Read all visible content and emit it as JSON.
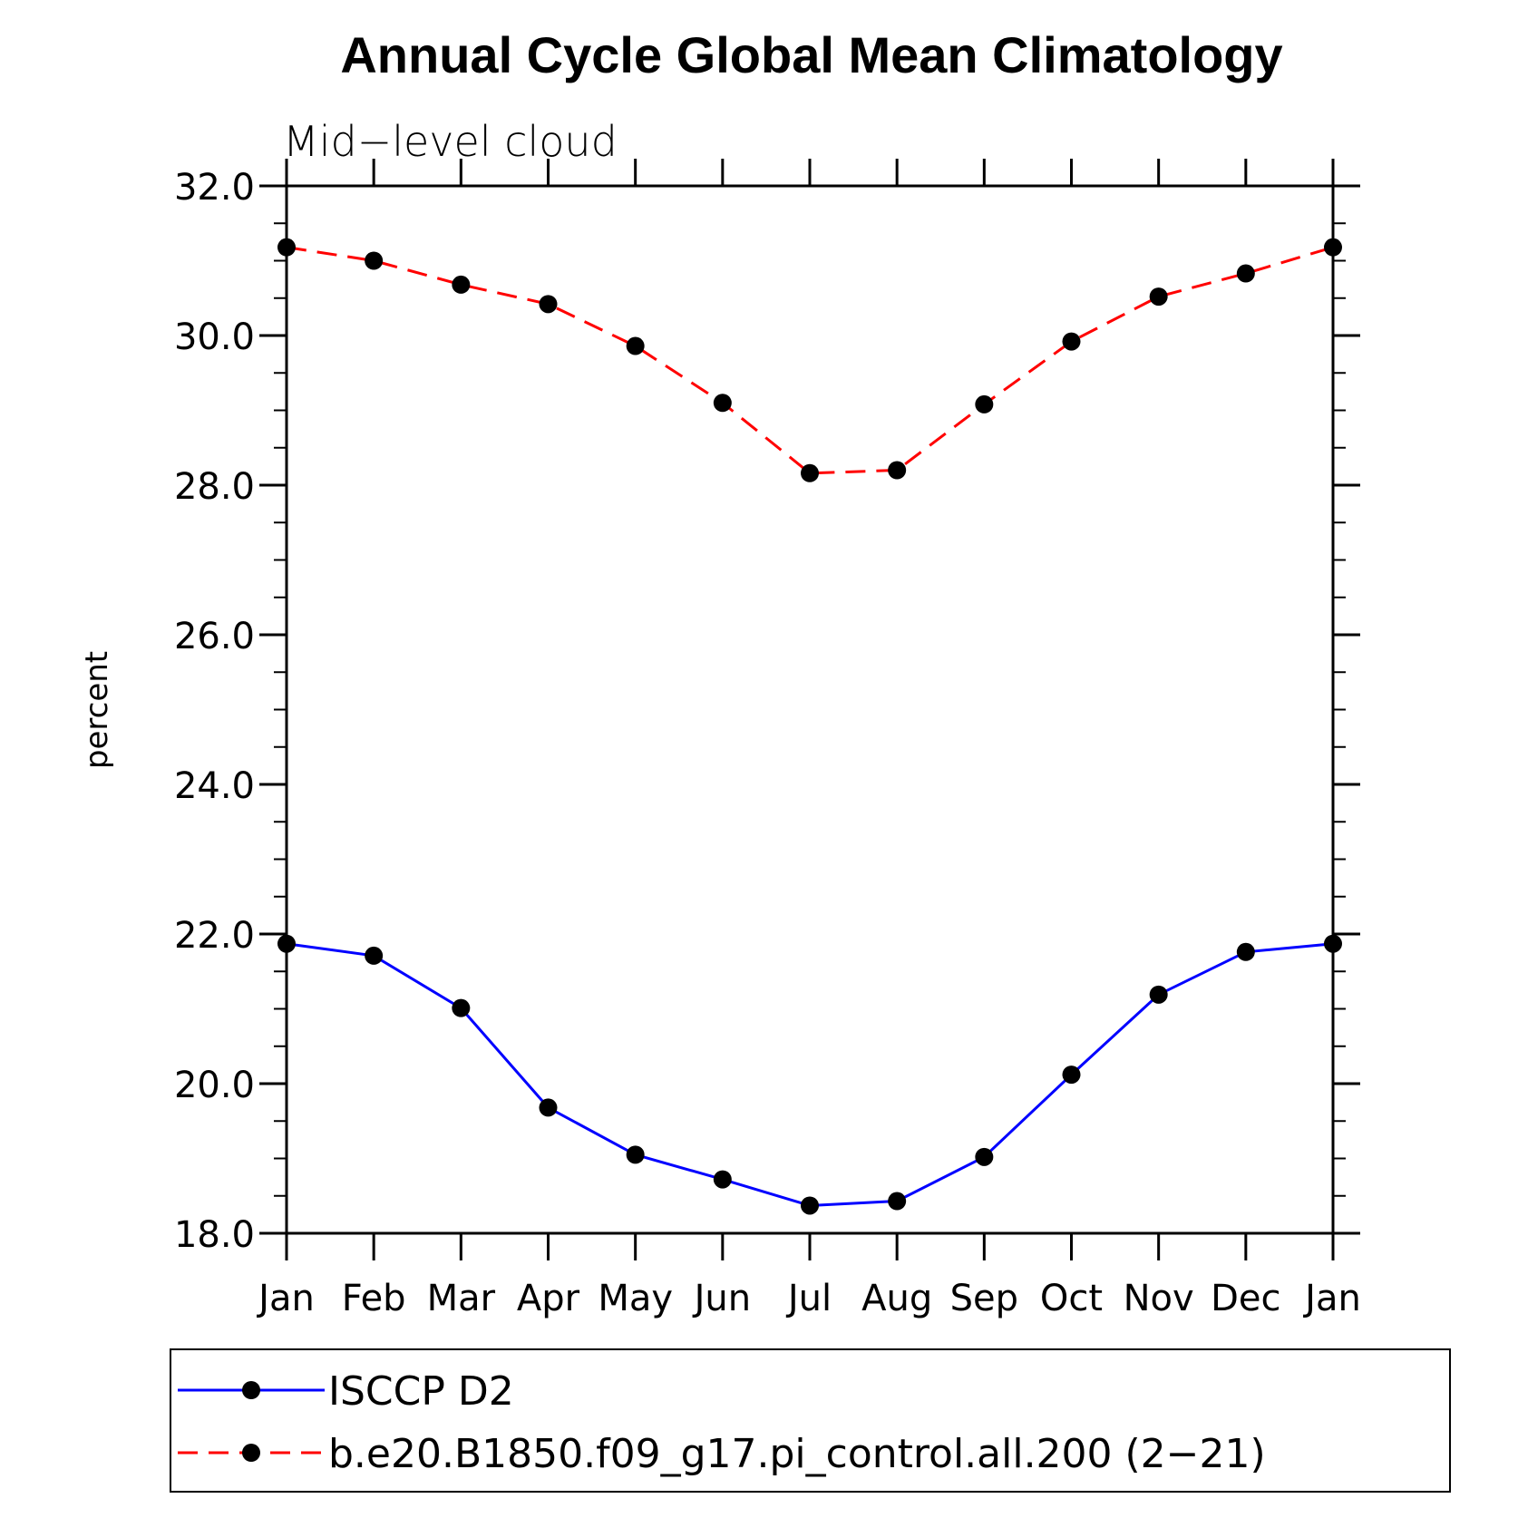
{
  "chart_data": {
    "type": "line",
    "title": "Annual Cycle Global Mean Climatology",
    "subtitle": "Mid−level cloud",
    "xlabel": "",
    "ylabel": "percent",
    "categories": [
      "Jan",
      "Feb",
      "Mar",
      "Apr",
      "May",
      "Jun",
      "Jul",
      "Aug",
      "Sep",
      "Oct",
      "Nov",
      "Dec",
      "Jan"
    ],
    "ylim": [
      18.0,
      32.0
    ],
    "yticks": [
      "18.0",
      "20.0",
      "22.0",
      "24.0",
      "26.0",
      "28.0",
      "30.0",
      "32.0"
    ],
    "grid": false,
    "legend_position": "bottom",
    "series": [
      {
        "name": "ISCCP D2",
        "color": "#0000ff",
        "style": "solid",
        "marker": "filled-circle",
        "values": [
          21.87,
          21.71,
          21.01,
          19.68,
          19.05,
          18.72,
          18.37,
          18.43,
          19.02,
          20.12,
          21.19,
          21.76,
          21.87
        ]
      },
      {
        "name": "b.e20.B1850.f09_g17.pi_control.all.200 (2−21)",
        "color": "#ff0000",
        "style": "dashed",
        "marker": "filled-circle",
        "values": [
          31.18,
          31.0,
          30.68,
          30.42,
          29.86,
          29.1,
          28.16,
          28.2,
          29.08,
          29.92,
          30.52,
          30.83,
          31.18
        ]
      }
    ]
  }
}
